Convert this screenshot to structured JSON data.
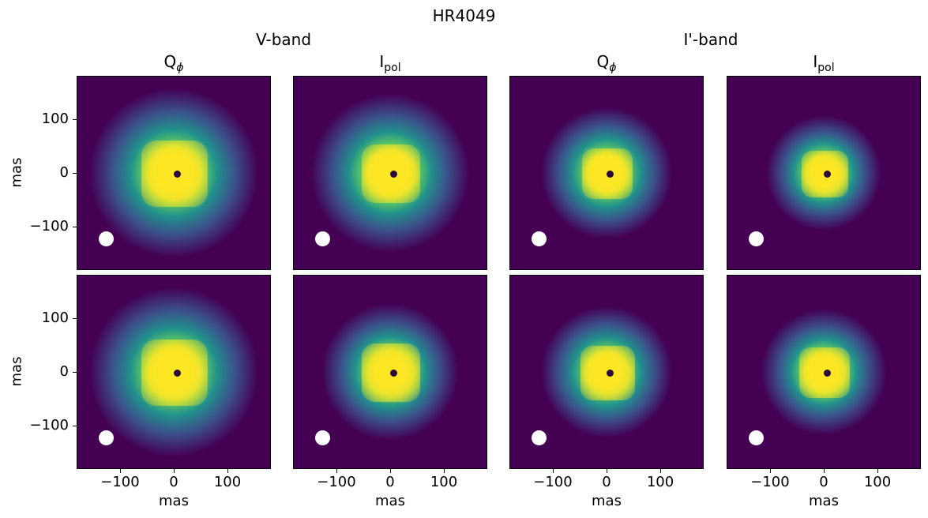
{
  "chart_data": {
    "type": "heatmap",
    "title": "HR4049",
    "column_groups": [
      "V-band",
      "I'-band"
    ],
    "panel_titles": [
      {
        "main": "Q",
        "sub": "ϕ",
        "sub_style": "italic"
      },
      {
        "main": "I",
        "sub": "pol"
      },
      {
        "main": "Q",
        "sub": "ϕ",
        "sub_style": "italic"
      },
      {
        "main": "I",
        "sub": "pol"
      }
    ],
    "xlabel": "mas",
    "ylabel": "mas",
    "xlim": [
      -180,
      180
    ],
    "ylim": [
      -180,
      180
    ],
    "xticks": [
      "−100",
      "0",
      "100"
    ],
    "yticks": [
      "100",
      "0",
      "−100"
    ],
    "colormap": "viridis",
    "colors": {
      "low": "#440154",
      "mid": "#21918c",
      "high": "#fde725"
    },
    "beam_marker_color": "#ffffff"
  }
}
